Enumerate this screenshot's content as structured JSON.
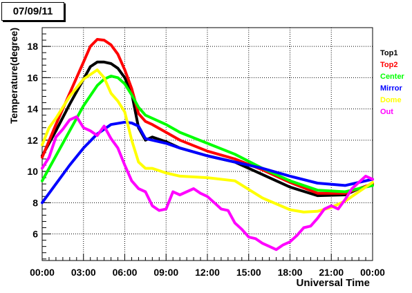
{
  "title": "07/09/11",
  "chart_data": {
    "type": "line",
    "title": "07/09/11",
    "xlabel": "Universal Time",
    "ylabel": "Temperature(degree)",
    "xlim": [
      0,
      24
    ],
    "ylim": [
      4.3,
      19.2
    ],
    "x_ticks": [
      "00:00",
      "03:00",
      "06:00",
      "09:00",
      "12:00",
      "15:00",
      "18:00",
      "21:00",
      "00:00"
    ],
    "y_ticks": [
      "6",
      "8",
      "10",
      "12",
      "14",
      "16",
      "18"
    ],
    "grid": true,
    "legend_position": "right",
    "series": [
      {
        "name": "Top1",
        "color": "#000000",
        "x": [
          0,
          1,
          2,
          3,
          3.5,
          4,
          4.5,
          5,
          5.5,
          6,
          6.5,
          7,
          7.5,
          8,
          9,
          10,
          12,
          14,
          16,
          18,
          20,
          22,
          23,
          24
        ],
        "y": [
          11.0,
          12.6,
          14.3,
          15.9,
          16.7,
          17.0,
          17.0,
          16.9,
          16.6,
          16.0,
          15.0,
          12.8,
          12.0,
          12.2,
          11.9,
          11.5,
          11.0,
          10.6,
          9.8,
          9.0,
          8.45,
          8.5,
          8.9,
          9.2
        ]
      },
      {
        "name": "Top2",
        "color": "#ff0000",
        "x": [
          0,
          1,
          2,
          3,
          3.5,
          4,
          4.5,
          5,
          5.5,
          6,
          6.5,
          7,
          7.5,
          8,
          9,
          10,
          12,
          14,
          16,
          18,
          20,
          22,
          23,
          24
        ],
        "y": [
          10.9,
          13.0,
          15.0,
          17.0,
          18.0,
          18.45,
          18.4,
          18.1,
          17.5,
          16.5,
          15.3,
          13.7,
          13.2,
          13.0,
          12.5,
          12.0,
          11.3,
          10.8,
          10.1,
          9.3,
          8.6,
          8.6,
          8.9,
          9.2
        ]
      },
      {
        "name": "Center",
        "color": "#00ff00",
        "x": [
          0,
          1,
          2,
          3,
          4,
          4.5,
          5,
          5.5,
          6,
          6.5,
          7,
          7.5,
          8,
          9,
          10,
          12,
          14,
          16,
          18,
          20,
          22,
          24
        ],
        "y": [
          9.4,
          11.0,
          12.6,
          14.2,
          15.5,
          15.9,
          16.1,
          16.0,
          15.6,
          14.9,
          14.1,
          13.6,
          13.4,
          13.0,
          12.5,
          11.8,
          11.1,
          10.2,
          9.4,
          8.8,
          8.7,
          9.1
        ]
      },
      {
        "name": "Mirror",
        "color": "#0000ff",
        "x": [
          0,
          1,
          2,
          3,
          4,
          5,
          6,
          6.5,
          7,
          7.5,
          8,
          9,
          10,
          12,
          14,
          16,
          18,
          20,
          22,
          24
        ],
        "y": [
          8.0,
          9.2,
          10.4,
          11.5,
          12.4,
          13.0,
          13.15,
          13.1,
          12.9,
          12.1,
          12.0,
          11.8,
          11.5,
          11.0,
          10.6,
          10.2,
          9.7,
          9.25,
          9.1,
          9.5
        ]
      },
      {
        "name": "Dome",
        "color": "#ffff00",
        "x": [
          0,
          0.5,
          1,
          2,
          3,
          4,
          4.5,
          5,
          5.5,
          6,
          6.5,
          7,
          7.5,
          8,
          9,
          10,
          12,
          14,
          16,
          18,
          19,
          20,
          21,
          22,
          23,
          24
        ],
        "y": [
          11.7,
          12.8,
          13.4,
          14.8,
          15.9,
          16.5,
          16.0,
          15.0,
          14.5,
          13.8,
          12.0,
          10.6,
          10.2,
          10.2,
          9.9,
          9.7,
          9.6,
          9.4,
          8.3,
          7.55,
          7.4,
          7.45,
          7.7,
          8.1,
          8.7,
          9.3
        ]
      },
      {
        "name": "Out",
        "color": "#ff00ff",
        "x": [
          0,
          0.5,
          1,
          1.5,
          2,
          2.5,
          3,
          3.5,
          4,
          4.5,
          5,
          5.5,
          6,
          6.5,
          7,
          7.5,
          8,
          8.5,
          9,
          9.5,
          10,
          10.5,
          11,
          11.5,
          12,
          12.5,
          13,
          13.5,
          14,
          14.5,
          15,
          15.5,
          16,
          16.5,
          17,
          17.5,
          18,
          18.5,
          19,
          19.5,
          20,
          20.5,
          21,
          21.5,
          22,
          22.5,
          23,
          23.5,
          24
        ],
        "y": [
          10.2,
          10.9,
          12.2,
          12.7,
          13.3,
          13.5,
          12.8,
          12.6,
          12.3,
          12.9,
          12.1,
          11.5,
          10.4,
          9.4,
          8.9,
          8.7,
          7.8,
          7.5,
          7.6,
          8.7,
          8.5,
          8.7,
          8.9,
          8.6,
          8.4,
          8.0,
          7.6,
          7.5,
          6.7,
          6.3,
          5.8,
          5.7,
          5.4,
          5.2,
          5.0,
          5.3,
          5.5,
          5.9,
          6.4,
          6.5,
          7.0,
          7.6,
          7.8,
          7.6,
          8.2,
          8.9,
          9.3,
          9.7,
          9.5
        ]
      }
    ]
  }
}
